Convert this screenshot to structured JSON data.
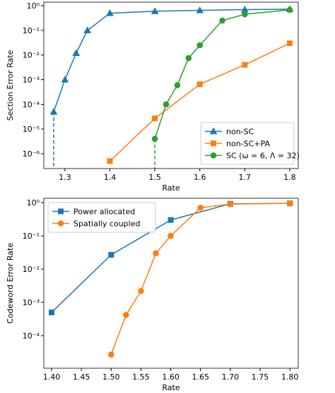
{
  "chart_data": [
    {
      "type": "line",
      "xlabel": "Rate",
      "ylabel": "Section Error Rate",
      "log_y": true,
      "xlim": [
        1.253,
        1.819
      ],
      "ylim": [
        2.5e-07,
        1.4
      ],
      "xticks": [
        1.3,
        1.4,
        1.5,
        1.6,
        1.7,
        1.8
      ],
      "yticks": [
        {
          "value": 1e-06,
          "label": "10⁻⁶"
        },
        {
          "value": 1e-05,
          "label": "10⁻⁵"
        },
        {
          "value": 0.0001,
          "label": "10⁻⁴"
        },
        {
          "value": 0.001,
          "label": "10⁻³"
        },
        {
          "value": 0.01,
          "label": "10⁻²"
        },
        {
          "value": 0.1,
          "label": "10⁻¹"
        },
        {
          "value": 1,
          "label": "10⁰"
        }
      ],
      "legend": "lower right",
      "series": [
        {
          "name": "non-SC",
          "color": "#1f77b4",
          "marker": "triangle",
          "drop_line": true,
          "x": [
            1.275,
            1.3,
            1.325,
            1.35,
            1.4,
            1.5,
            1.6,
            1.7,
            1.8
          ],
          "values": [
            5e-05,
            0.001,
            0.012,
            0.1,
            0.5,
            0.6,
            0.65,
            0.7,
            0.72
          ]
        },
        {
          "name": "non-SC+PA",
          "color": "#ff7f0e",
          "marker": "square",
          "drop_line": false,
          "x": [
            1.4,
            1.5,
            1.6,
            1.7,
            1.8
          ],
          "values": [
            5e-07,
            2.7e-05,
            0.00065,
            0.004,
            0.03
          ]
        },
        {
          "name": "SC (ω = 6, Λ = 32)",
          "color": "#2ca02c",
          "marker": "circle",
          "drop_line": true,
          "x": [
            1.5,
            1.525,
            1.55,
            1.575,
            1.6,
            1.65,
            1.7,
            1.8
          ],
          "values": [
            4e-06,
            0.0001,
            0.0006,
            0.0075,
            0.025,
            0.25,
            0.45,
            0.68
          ]
        }
      ]
    },
    {
      "type": "line",
      "xlabel": "Rate",
      "ylabel": "Codeword Error Rate",
      "log_y": true,
      "xlim": [
        1.387,
        1.814
      ],
      "ylim": [
        1.05e-05,
        1.35
      ],
      "xticks": [
        {
          "value": 1.4,
          "label": "1.40"
        },
        {
          "value": 1.45,
          "label": "1.45"
        },
        {
          "value": 1.5,
          "label": "1.50"
        },
        {
          "value": 1.55,
          "label": "1.55"
        },
        {
          "value": 1.6,
          "label": "1.60"
        },
        {
          "value": 1.65,
          "label": "1.65"
        },
        {
          "value": 1.7,
          "label": "1.70"
        },
        {
          "value": 1.75,
          "label": "1.75"
        },
        {
          "value": 1.8,
          "label": "1.80"
        }
      ],
      "yticks": [
        {
          "value": 0.0001,
          "label": "10⁻⁴"
        },
        {
          "value": 0.001,
          "label": "10⁻³"
        },
        {
          "value": 0.01,
          "label": "10⁻²"
        },
        {
          "value": 0.1,
          "label": "10⁻¹"
        },
        {
          "value": 1,
          "label": "10⁰"
        }
      ],
      "legend": "upper left",
      "series": [
        {
          "name": "Power allocated",
          "color": "#1f77b4",
          "marker": "square",
          "drop_line": false,
          "x": [
            1.4,
            1.5,
            1.6,
            1.7,
            1.8
          ],
          "values": [
            0.0005,
            0.027,
            0.3,
            0.92,
            0.95
          ]
        },
        {
          "name": "Spatially coupled",
          "color": "#ff7f0e",
          "marker": "circle",
          "drop_line": false,
          "x": [
            1.5,
            1.525,
            1.55,
            1.575,
            1.6,
            1.65,
            1.7,
            1.8
          ],
          "values": [
            2.7e-05,
            0.00042,
            0.0022,
            0.03,
            0.1,
            0.7,
            0.9,
            0.95
          ]
        }
      ]
    }
  ]
}
